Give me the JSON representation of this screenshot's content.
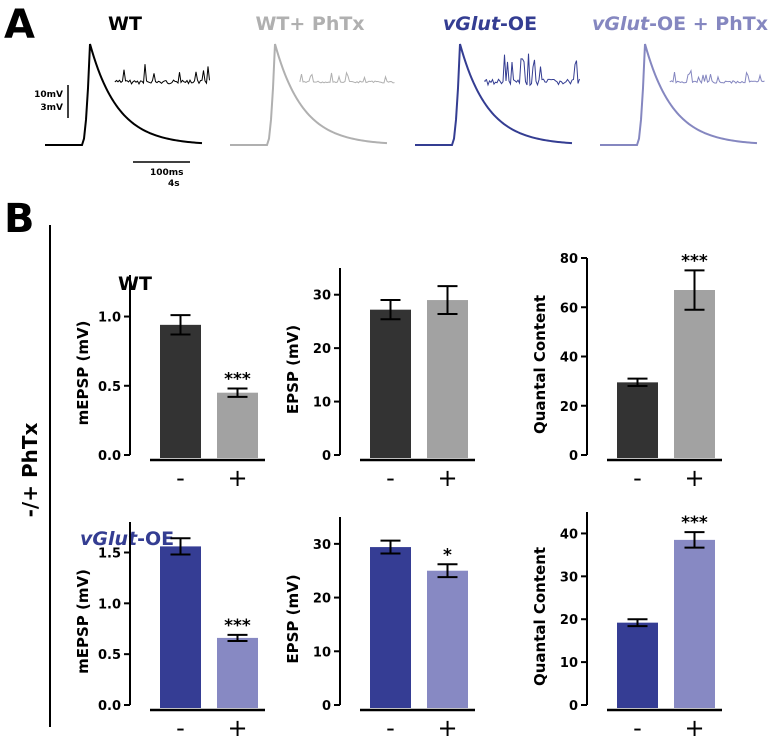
{
  "panel_a": {
    "label": "A",
    "titles": [
      {
        "text_italic": "",
        "text": "WT",
        "color": "#000000"
      },
      {
        "text_italic": "",
        "text": "WT+ PhTx",
        "color": "#b0b0b0"
      },
      {
        "text_italic": "vGlut",
        "text": "-OE",
        "color": "#343d92"
      },
      {
        "text_italic": "vGlut",
        "text": "-OE + PhTx",
        "color": "#8587c0"
      }
    ],
    "trace_colors": [
      "#000000",
      "#b0b0b0",
      "#343d92",
      "#8587c0"
    ],
    "scale_v_labels": [
      "10mV",
      "3mV"
    ],
    "scale_h_labels": [
      "100ms",
      "4s"
    ]
  },
  "panel_b": {
    "label": "B",
    "side_label": "-/+ PhTx",
    "row_labels": [
      {
        "italic": "",
        "text": "WT",
        "color": "#000000"
      },
      {
        "italic": "vGlut",
        "text": "-OE",
        "color": "#343d92"
      }
    ]
  },
  "chart_data": [
    {
      "type": "bar",
      "row": "WT",
      "ylabel": "mEPSP (mV)",
      "categories": [
        "-",
        "+"
      ],
      "values": [
        0.94,
        0.45
      ],
      "errors": [
        0.07,
        0.03
      ],
      "colors": [
        "#333333",
        "#a2a2a2"
      ],
      "ylim": [
        0,
        1.3
      ],
      "yticks": [
        "0.0",
        "0.5",
        "1.0"
      ],
      "ytick_values": [
        0,
        0.5,
        1.0
      ],
      "annotations": [
        "",
        "***"
      ]
    },
    {
      "type": "bar",
      "row": "WT",
      "ylabel": "EPSP (mV)",
      "categories": [
        "-",
        "+"
      ],
      "values": [
        27.2,
        29.0
      ],
      "errors": [
        1.8,
        2.6
      ],
      "colors": [
        "#333333",
        "#a2a2a2"
      ],
      "ylim": [
        0,
        35
      ],
      "yticks": [
        "0",
        "10",
        "20",
        "30"
      ],
      "ytick_values": [
        0,
        10,
        20,
        30
      ],
      "annotations": [
        "",
        ""
      ]
    },
    {
      "type": "bar",
      "row": "WT",
      "ylabel": "Quantal Content",
      "categories": [
        "-",
        "+"
      ],
      "values": [
        29.5,
        67
      ],
      "errors": [
        1.5,
        8
      ],
      "colors": [
        "#333333",
        "#a2a2a2"
      ],
      "ylim": [
        0,
        80
      ],
      "yticks": [
        "0",
        "20",
        "40",
        "60",
        "80"
      ],
      "ytick_values": [
        0,
        20,
        40,
        60,
        80
      ],
      "annotations": [
        "",
        "***"
      ]
    },
    {
      "type": "bar",
      "row": "vGlut-OE",
      "ylabel": "mEPSP (mV)",
      "categories": [
        "-",
        "+"
      ],
      "values": [
        1.56,
        0.66
      ],
      "errors": [
        0.08,
        0.03
      ],
      "colors": [
        "#353d94",
        "#8789c3"
      ],
      "ylim": [
        0,
        1.8
      ],
      "yticks": [
        "0.0",
        "0.5",
        "1.0",
        "1.5"
      ],
      "ytick_values": [
        0,
        0.5,
        1.0,
        1.5
      ],
      "annotations": [
        "",
        "***"
      ]
    },
    {
      "type": "bar",
      "row": "vGlut-OE",
      "ylabel": "EPSP (mV)",
      "categories": [
        "-",
        "+"
      ],
      "values": [
        29.4,
        25.0
      ],
      "errors": [
        1.2,
        1.2
      ],
      "colors": [
        "#353d94",
        "#8789c3"
      ],
      "ylim": [
        0,
        35
      ],
      "yticks": [
        "0",
        "10",
        "20",
        "30"
      ],
      "ytick_values": [
        0,
        10,
        20,
        30
      ],
      "annotations": [
        "",
        "*"
      ]
    },
    {
      "type": "bar",
      "row": "vGlut-OE",
      "ylabel": "Quantal Content",
      "categories": [
        "-",
        "+"
      ],
      "values": [
        19.2,
        38.5
      ],
      "errors": [
        0.8,
        1.8
      ],
      "colors": [
        "#353d94",
        "#8789c3"
      ],
      "ylim": [
        0,
        45
      ],
      "yticks": [
        "0",
        "10",
        "20",
        "30",
        "40"
      ],
      "ytick_values": [
        0,
        10,
        20,
        30,
        40
      ],
      "annotations": [
        "",
        "***"
      ]
    }
  ]
}
